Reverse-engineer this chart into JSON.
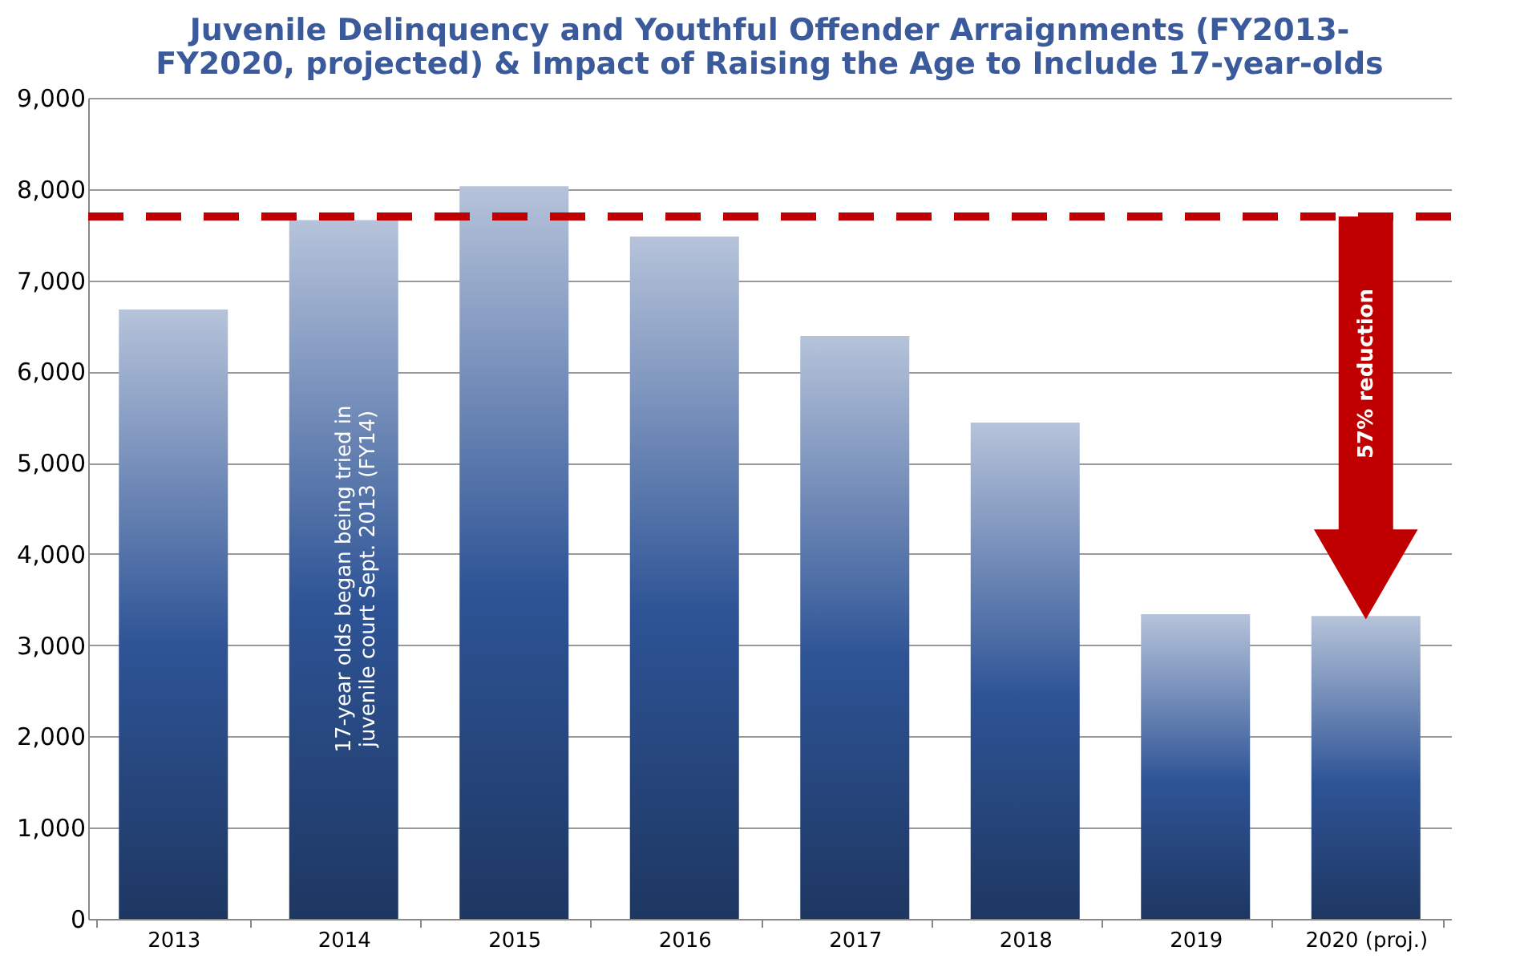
{
  "chart_data": {
    "type": "bar",
    "title": "Juvenile Delinquency and Youthful Offender Arraignments (FY2013-\nFY2020, projected) & Impact of Raising the Age to Include 17-year-olds",
    "categories": [
      "2013",
      "2014",
      "2015",
      "2016",
      "2017",
      "2018",
      "2019",
      "2020 (proj.)"
    ],
    "values": [
      6680,
      7660,
      8030,
      7480,
      6390,
      5440,
      3340,
      3320
    ],
    "color": "#2e5496",
    "ylim": [
      0,
      9000
    ],
    "yticks": [
      0,
      {
        "value": 1000,
        "label": "1,000"
      },
      {
        "value": 2000,
        "label": "2,000"
      },
      {
        "value": 3000,
        "label": "3,000"
      },
      {
        "value": 4000,
        "label": "4,000"
      },
      {
        "value": 5000,
        "label": "5,000"
      },
      {
        "value": 6000,
        "label": "6,000"
      },
      {
        "value": 7000,
        "label": "7,000"
      },
      {
        "value": 8000,
        "label": "8,000"
      },
      {
        "value": 9000,
        "label": "9,000"
      }
    ],
    "grid": "y",
    "ref_lines": [
      {
        "axis": "y",
        "value": 7700,
        "color": "#c00000",
        "line_style": "dashed"
      }
    ],
    "annotations": [
      "17-year olds began being tried in\njuvenile court Sept. 2013 (FY14)",
      "57% reduction"
    ]
  }
}
